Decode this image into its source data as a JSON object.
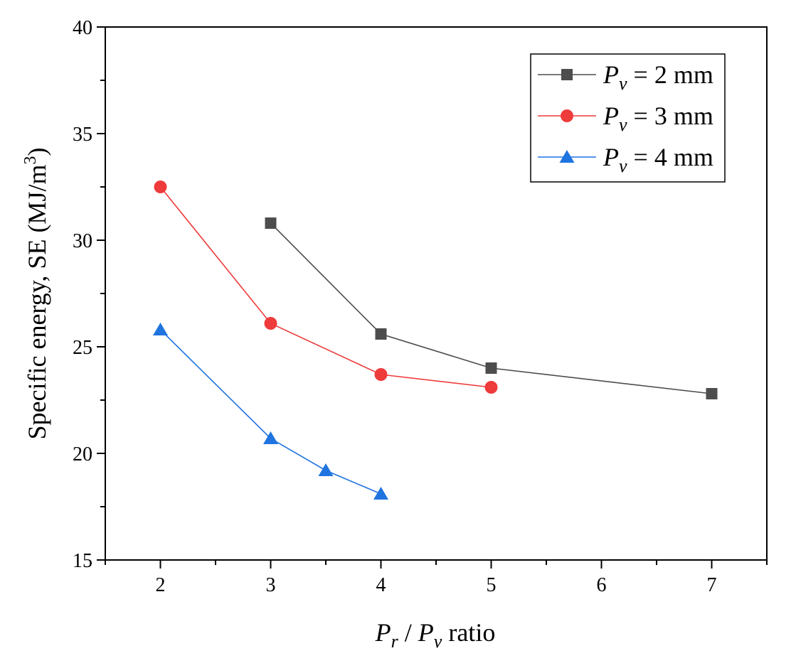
{
  "chart_data": {
    "type": "line",
    "title": "",
    "xlabel": {
      "main": "P",
      "sub": "r",
      "sep": " / ",
      "main2": "P",
      "sub2": "v",
      "suffix": " ratio"
    },
    "ylabel": {
      "text": "Specific energy, SE (MJ/m",
      "sup": "3",
      "close": ")"
    },
    "xlim": [
      1.5,
      7.5
    ],
    "ylim": [
      15,
      40
    ],
    "xticks": [
      2,
      3,
      4,
      5,
      6,
      7
    ],
    "yticks": [
      15,
      20,
      25,
      30,
      35,
      40
    ],
    "grid": false,
    "legend_position": "top-right",
    "series": [
      {
        "name": "P_v = 2 mm",
        "label_main": "P",
        "label_sub": "v",
        "label_rest": " = 2 mm",
        "marker": "square",
        "color": "#4d4d4d",
        "x": [
          3,
          4,
          5,
          7
        ],
        "y": [
          30.8,
          25.6,
          24.0,
          22.8
        ]
      },
      {
        "name": "P_v = 3 mm",
        "label_main": "P",
        "label_sub": "v",
        "label_rest": " = 3 mm",
        "marker": "circle",
        "color": "#ee3b3b",
        "x": [
          2,
          3,
          4,
          5
        ],
        "y": [
          32.5,
          26.1,
          23.7,
          23.1
        ]
      },
      {
        "name": "P_v = 4 mm",
        "label_main": "P",
        "label_sub": "v",
        "label_rest": " = 4 mm",
        "marker": "triangle",
        "color": "#1f74e0",
        "x": [
          2,
          3,
          3.5,
          4
        ],
        "y": [
          25.8,
          20.7,
          19.2,
          18.1
        ]
      }
    ]
  }
}
